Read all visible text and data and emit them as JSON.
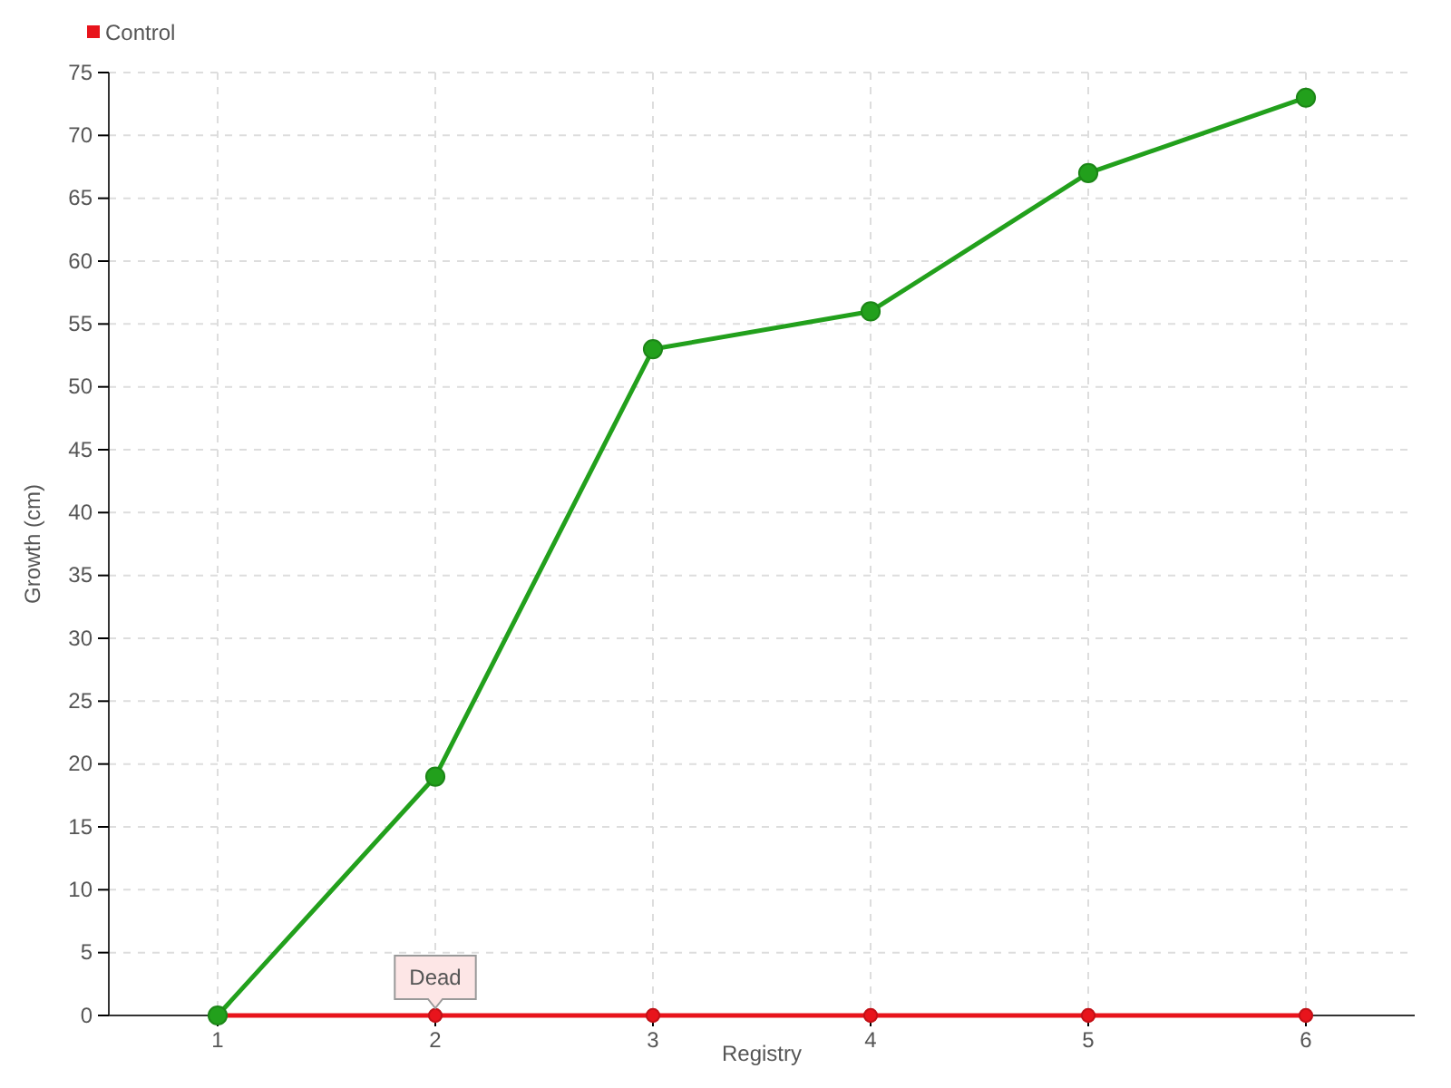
{
  "chart_data": {
    "type": "line",
    "xlabel": "Registry",
    "ylabel": "Growth (cm)",
    "x": [
      1,
      2,
      3,
      4,
      5,
      6
    ],
    "series": [
      {
        "color": "#22a01c",
        "values": [
          0,
          19,
          53,
          56,
          67,
          73
        ]
      },
      {
        "name": "Control",
        "color": "#e8141c",
        "values": [
          0,
          0,
          0,
          0,
          0,
          0
        ]
      }
    ],
    "xlim": [
      0.5,
      6.5
    ],
    "xticks": [
      1,
      2,
      3,
      4,
      5,
      6
    ],
    "ylim": [
      0,
      75
    ],
    "yticks": [
      0,
      5,
      10,
      15,
      20,
      25,
      30,
      35,
      40,
      45,
      50,
      55,
      60,
      65,
      70,
      75
    ],
    "grid": true,
    "legend": "top left",
    "marker": "circle",
    "line_style": "solid",
    "annotations": [
      {
        "text": "Dead",
        "x": 2,
        "y": 0
      }
    ]
  }
}
